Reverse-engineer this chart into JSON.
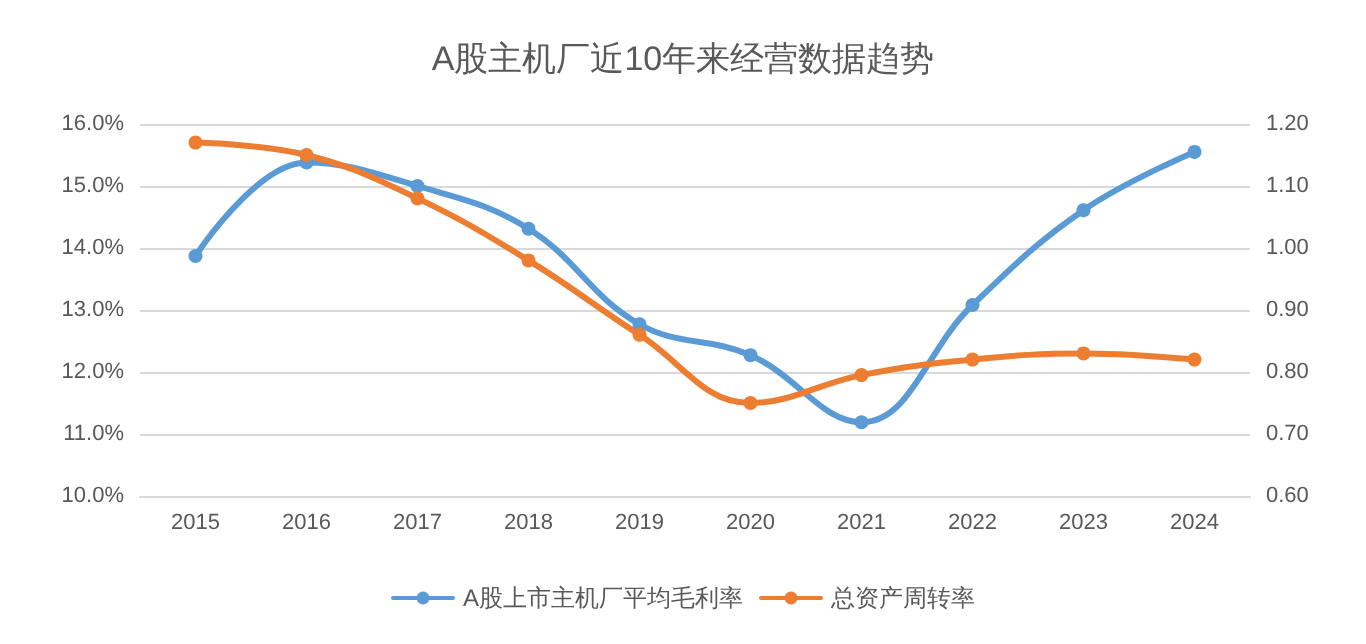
{
  "chart_data": {
    "type": "line",
    "title": "A股主机厂近10年来经营数据趋势",
    "categories": [
      "2015",
      "2016",
      "2017",
      "2018",
      "2019",
      "2020",
      "2021",
      "2022",
      "2023",
      "2024"
    ],
    "series": [
      {
        "name": "A股上市主机厂平均毛利率",
        "color": "#5b9bd5",
        "values": [
          13.87,
          15.38,
          15.0,
          14.31,
          12.77,
          12.27,
          11.19,
          13.08,
          14.61,
          15.55
        ]
      },
      {
        "name": "总资产周转率",
        "color": "#ed7d31",
        "axis": "y2",
        "values": [
          1.17,
          1.15,
          1.08,
          0.98,
          0.86,
          0.75,
          0.795,
          0.82,
          0.83,
          0.82
        ]
      }
    ],
    "ylim": [
      10,
      16
    ],
    "yticks": [
      {
        "value": 10,
        "label": "10.0%"
      },
      {
        "value": 11,
        "label": "11.0%"
      },
      {
        "value": 12,
        "label": "12.0%"
      },
      {
        "value": 13,
        "label": "13.0%"
      },
      {
        "value": 14,
        "label": "14.0%"
      },
      {
        "value": 15,
        "label": "15.0%"
      },
      {
        "value": 16,
        "label": "16.0%"
      }
    ],
    "y2lim": [
      0.6,
      1.2
    ],
    "y2ticks": [
      {
        "value": 0.6,
        "label": "0.60"
      },
      {
        "value": 0.7,
        "label": "0.70"
      },
      {
        "value": 0.8,
        "label": "0.80"
      },
      {
        "value": 0.9,
        "label": "0.90"
      },
      {
        "value": 1.0,
        "label": "1.00"
      },
      {
        "value": 1.1,
        "label": "1.10"
      },
      {
        "value": 1.2,
        "label": "1.20"
      }
    ],
    "grid": "y",
    "legend": "bottom",
    "marker": "circle",
    "line_style": "solid"
  }
}
